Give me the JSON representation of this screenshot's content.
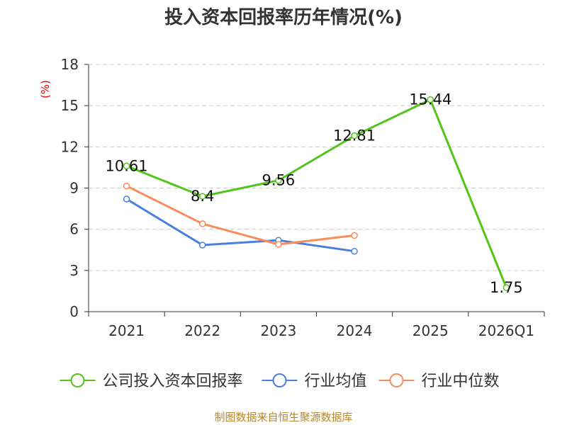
{
  "chart_data": {
    "type": "line",
    "title": "投入资本回报率历年情况(%)",
    "ylabel": "(%)",
    "xlabel": "",
    "categories": [
      "2021",
      "2022",
      "2023",
      "2024",
      "2025",
      "2026Q1"
    ],
    "ylim": [
      0,
      18
    ],
    "yticks": [
      0,
      3,
      6,
      9,
      12,
      15,
      18
    ],
    "grid": true,
    "legend_position": "bottom",
    "series": [
      {
        "name": "公司投入资本回报率",
        "color": "#52c41a",
        "values": [
          10.61,
          8.4,
          9.56,
          12.81,
          15.44,
          1.75
        ],
        "labels": [
          "10.61",
          "8.4",
          "9.56",
          "12.81",
          "15.44",
          "1.75"
        ],
        "show_labels": true
      },
      {
        "name": "行业均值",
        "color": "#4a7fe0",
        "values": [
          8.2,
          4.85,
          5.2,
          4.4,
          null,
          null
        ],
        "show_labels": false
      },
      {
        "name": "行业中位数",
        "color": "#f98c5c",
        "values": [
          9.15,
          6.4,
          4.9,
          5.55,
          null,
          null
        ],
        "show_labels": false
      }
    ]
  },
  "source_note": "制图数据来自恒生聚源数据库"
}
